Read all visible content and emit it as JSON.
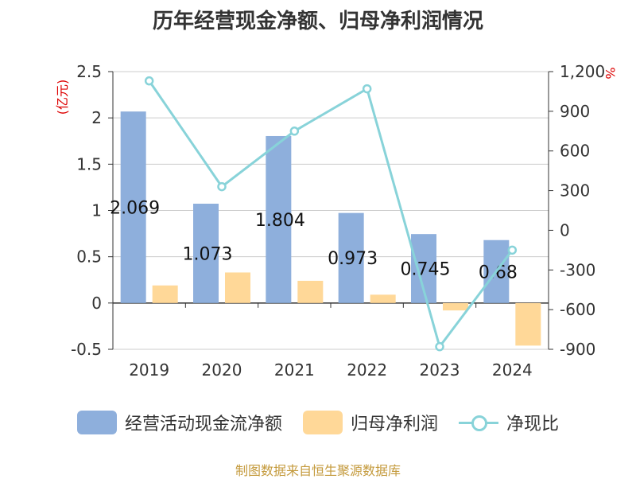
{
  "chart_data": {
    "type": "bar",
    "title": "历年经营现金净额、归母净利润情况",
    "categories": [
      "2019",
      "2020",
      "2021",
      "2022",
      "2023",
      "2024"
    ],
    "series": [
      {
        "name": "经营活动现金流净额",
        "type": "bar",
        "axis": "left",
        "color": "#8eafdc",
        "values": [
          2.069,
          1.073,
          1.804,
          0.973,
          0.745,
          0.68
        ],
        "labels": [
          "2.069",
          "1.073",
          "1.804",
          "0.973",
          "0.745",
          "0.68"
        ]
      },
      {
        "name": "归母净利润",
        "type": "bar",
        "axis": "left",
        "color": "#ffd898",
        "values": [
          0.19,
          0.33,
          0.24,
          0.09,
          -0.08,
          -0.46
        ]
      },
      {
        "name": "净现比",
        "type": "line",
        "axis": "right",
        "color": "#88d3d9",
        "values": [
          1130,
          330,
          750,
          1070,
          -880,
          -150
        ]
      }
    ],
    "y_left": {
      "unit": "(亿元)",
      "ylim": [
        -0.5,
        2.5
      ],
      "ticks": [
        "2.5",
        "2",
        "1.5",
        "1",
        "0.5",
        "0",
        "-0.5"
      ]
    },
    "y_right": {
      "unit": "%",
      "ylim": [
        -900,
        1200
      ],
      "ticks": [
        "1,200",
        "900",
        "600",
        "300",
        "0",
        "-300",
        "-600",
        "-900"
      ]
    },
    "grid": true,
    "legend_position": "bottom"
  },
  "footer": {
    "source": "制图数据来自恒生聚源数据库"
  }
}
